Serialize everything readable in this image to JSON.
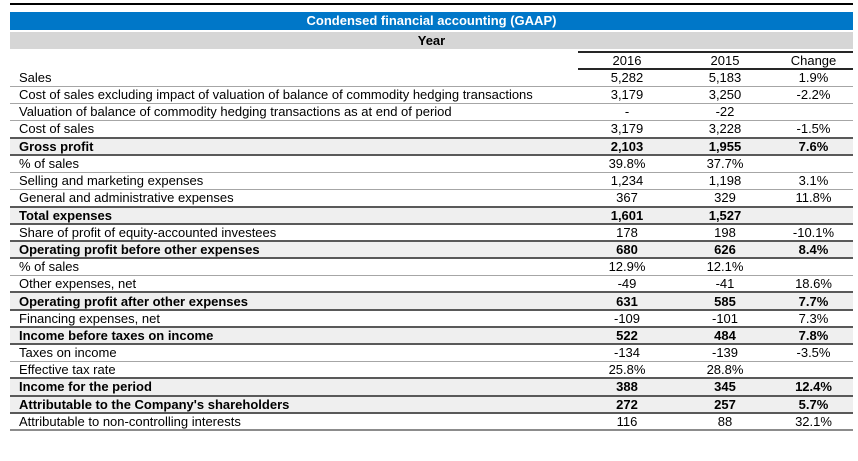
{
  "header": {
    "title": "Condensed financial accounting (GAAP)",
    "subtitle": "Year"
  },
  "table": {
    "columns": [
      "2016",
      "2015",
      "Change"
    ],
    "rows": [
      {
        "label": "Sales",
        "y2016": "5,282",
        "y2015": "5,183",
        "change": "1.9%",
        "emphasis": false
      },
      {
        "label": "Cost of sales excluding impact of valuation of balance of commodity hedging transactions",
        "y2016": "3,179",
        "y2015": "3,250",
        "change": "-2.2%",
        "emphasis": false
      },
      {
        "label": "Valuation of balance of commodity hedging transactions as at end of period",
        "y2016": "-",
        "y2015": "-22",
        "change": "",
        "emphasis": false
      },
      {
        "label": "Cost of sales",
        "y2016": "3,179",
        "y2015": "3,228",
        "change": "-1.5%",
        "emphasis": false
      },
      {
        "label": "Gross profit",
        "y2016": "2,103",
        "y2015": "1,955",
        "change": "7.6%",
        "emphasis": true
      },
      {
        "label": "% of sales",
        "y2016": "39.8%",
        "y2015": "37.7%",
        "change": "",
        "emphasis": false
      },
      {
        "label": "Selling and marketing expenses",
        "y2016": "1,234",
        "y2015": "1,198",
        "change": "3.1%",
        "emphasis": false
      },
      {
        "label": "General and administrative expenses",
        "y2016": "367",
        "y2015": "329",
        "change": "11.8%",
        "emphasis": false
      },
      {
        "label": "Total expenses",
        "y2016": "1,601",
        "y2015": "1,527",
        "change": "",
        "emphasis": true
      },
      {
        "label": "Share of profit of equity-accounted investees",
        "y2016": "178",
        "y2015": "198",
        "change": "-10.1%",
        "emphasis": false
      },
      {
        "label": "Operating profit before other expenses",
        "y2016": "680",
        "y2015": "626",
        "change": "8.4%",
        "emphasis": true
      },
      {
        "label": "% of sales",
        "y2016": "12.9%",
        "y2015": "12.1%",
        "change": "",
        "emphasis": false
      },
      {
        "label": "Other expenses, net",
        "y2016": "-49",
        "y2015": "-41",
        "change": "18.6%",
        "emphasis": false
      },
      {
        "label": "Operating profit after other expenses",
        "y2016": "631",
        "y2015": "585",
        "change": "7.7%",
        "emphasis": true
      },
      {
        "label": "Financing expenses, net",
        "y2016": "-109",
        "y2015": "-101",
        "change": "7.3%",
        "emphasis": false
      },
      {
        "label": "Income before taxes on income",
        "y2016": "522",
        "y2015": "484",
        "change": "7.8%",
        "emphasis": true
      },
      {
        "label": "Taxes on income",
        "y2016": "-134",
        "y2015": "-139",
        "change": "-3.5%",
        "emphasis": false
      },
      {
        "label": "Effective tax rate",
        "y2016": "25.8%",
        "y2015": "28.8%",
        "change": "",
        "emphasis": false
      },
      {
        "label": "Income for the period",
        "y2016": "388",
        "y2015": "345",
        "change": "12.4%",
        "emphasis": true
      },
      {
        "label": "Attributable to the Company's shareholders",
        "y2016": "272",
        "y2015": "257",
        "change": "5.7%",
        "emphasis": true
      },
      {
        "label": "Attributable to non-controlling interests",
        "y2016": "116",
        "y2015": "88",
        "change": "32.1%",
        "emphasis": false
      }
    ]
  },
  "colors": {
    "accent_blue": "#0077C8",
    "subtitle_gray": "#D6D6D6",
    "emphasis_bg": "#EFEFEF",
    "separator": "#A6A6A6",
    "emphasis_border": "#595959",
    "header_line": "#262626",
    "top_line": "#000000",
    "title_text": "#FFFFFF"
  }
}
